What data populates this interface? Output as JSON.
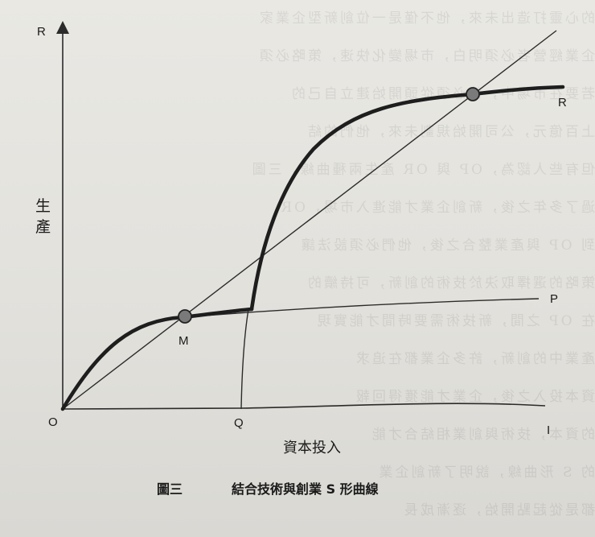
{
  "diagram": {
    "axis_labels": {
      "y_top": "R",
      "x_right": "I",
      "origin": "O",
      "y_title_line1": "生",
      "y_title_line2": "產",
      "x_title": "資本投入"
    },
    "curve_labels": {
      "R": "R",
      "P": "P",
      "M": "M",
      "Q": "Q"
    },
    "caption": {
      "figure_no": "圖三",
      "title": "結合技術與創業 S 形曲線"
    }
  },
  "background_text": [
    "的心靈打造出未來，他不僅是一位創新型企業家",
    "企業經營者必須明白，市場變化快速，策略必須",
    "若要在市場中，他必須從頭開始建立自己的",
    "上百億元，公司開始規劃未來，他們的結",
    "但有些人認為，OP 與 OR 產生兩種曲線，三圖",
    "過了多年之後，新創企業才能進入市場，OR",
    "到 OP 與產業整合之後，他們必須設法讓",
    "策略的選擇取決於技術的創新，可持續的",
    "在 OP 之間，新技術需要時間才能實現",
    "產業中的創新，許多企業都在追求",
    "資本投入之後，企業才能獲得回報",
    "的資本，技術與創業相結合才能",
    "的 S 形曲線，說明了新創企業",
    "都是從起點開始，逐漸成長"
  ]
}
